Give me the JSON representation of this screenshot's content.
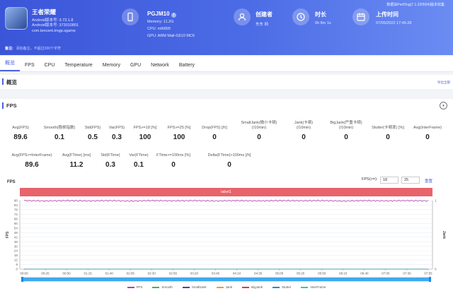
{
  "header": {
    "app_name": "王者荣耀",
    "app_version": "Android版本号: 3.73.1.8",
    "app_code": "Android版本号: 373010801",
    "package": "com.tencent.tmgp.sgame",
    "device_name": "PGJM10",
    "device_badge": "i",
    "device_memory": "Memory: 11.2G",
    "device_cpu": "CPU: mt6895",
    "device_gpu": "GPU: ARM Mali-G610 MC6",
    "creator_label": "创建者",
    "creator_value": "东东 网",
    "duration_label": "时长",
    "duration_value": "0h 8m 1s",
    "upload_label": "上传时间",
    "upload_value": "07/05/2022 17:45:28",
    "top_right": "数据由PerfDog(7.1.220504)版本收集",
    "note_key": "备注:",
    "note_placeholder": "添加备注，不超过200个字符"
  },
  "tabs": [
    "概览",
    "FPS",
    "CPU",
    "Temperature",
    "Memory",
    "GPU",
    "Network",
    "Battery"
  ],
  "active_tab": "概览",
  "overview": {
    "title": "概览",
    "export": "导出全部"
  },
  "fps": {
    "title": "FPS",
    "collapse": "▾",
    "row1": [
      {
        "label": "Avg(FPS)",
        "value": "89.6"
      },
      {
        "label": "Smooth(稳帧指数)",
        "value": "0.1"
      },
      {
        "label": "Std(FPS)",
        "value": "0.5"
      },
      {
        "label": "Var(FPS)",
        "value": "0.3"
      },
      {
        "label": "FPS>=18 [%]",
        "value": "100"
      },
      {
        "label": "FPS>=25 [%]",
        "value": "100"
      },
      {
        "label": "Drop(FPS) [/h]",
        "value": "0"
      },
      {
        "label": "SmallJank(微小卡顿)\n(/10min)",
        "value": "0"
      },
      {
        "label": "Jank(卡顿)\n(/10min)",
        "value": "0"
      },
      {
        "label": "BigJank(严重卡顿)\n(/10min)",
        "value": "0"
      },
      {
        "label": "Stutter(卡顿率) [%]",
        "value": "0"
      },
      {
        "label": "Avg(InterFrame)",
        "value": "0"
      }
    ],
    "row2": [
      {
        "label": "Avg(FPS>=InterFrame)",
        "value": "89.6"
      },
      {
        "label": "Avg(FTime) [ms]",
        "value": "11.2"
      },
      {
        "label": "Std(FTime)",
        "value": "0.3"
      },
      {
        "label": "Var(FTime)",
        "value": "0.1"
      },
      {
        "label": "FTime>=100ms [%]",
        "value": "0"
      },
      {
        "label": "Delta(FTime)>100ms [/h]",
        "value": "0"
      }
    ],
    "chart_title": "FPS",
    "filter_label": "FPS(>=):",
    "filter_a": "18",
    "filter_b": "25",
    "reset": "重置",
    "label_bar": "label1"
  },
  "chart_data": {
    "type": "line",
    "title": "",
    "xlabel": "",
    "ylabel": "FPS",
    "y2label": "Jank",
    "ylim": [
      0,
      90
    ],
    "yticks": [
      0,
      6,
      12,
      18,
      24,
      30,
      36,
      42,
      48,
      54,
      60,
      66,
      72,
      78,
      84,
      90
    ],
    "y2ticks": [
      0,
      1
    ],
    "categories": [
      "00:00",
      "00:25",
      "00:50",
      "01:15",
      "01:40",
      "02:05",
      "02:30",
      "02:55",
      "03:20",
      "03:45",
      "04:10",
      "04:35",
      "05:00",
      "05:25",
      "05:50",
      "06:15",
      "06:40",
      "07:05",
      "07:30",
      "07:55"
    ],
    "grid": true,
    "series": [
      {
        "name": "FPS",
        "color": "#b03fb0",
        "values": [
          90,
          89.5,
          90,
          89.6,
          90,
          89.4,
          90,
          89.7,
          90,
          89.5,
          90,
          89.6,
          90,
          89.8,
          90,
          89.4,
          90,
          89.6,
          90,
          89.6
        ]
      },
      {
        "name": "Smooth",
        "color": "#4caf50",
        "values": [
          0.1,
          0.1,
          0.1,
          0.1,
          0.1,
          0.1,
          0.1,
          0.1,
          0.1,
          0.1,
          0.1,
          0.1,
          0.1,
          0.1,
          0.1,
          0.1,
          0.1,
          0.1,
          0.1,
          0.1
        ]
      },
      {
        "name": "SmallJank",
        "color": "#3949ab",
        "values": [
          0,
          0,
          0,
          0,
          0,
          0,
          0,
          0,
          0,
          0,
          0,
          0,
          0,
          0,
          0,
          0,
          0,
          0,
          0,
          0
        ]
      },
      {
        "name": "Jank",
        "color": "#f39c12",
        "values": [
          0,
          0,
          0,
          0,
          0,
          0,
          0,
          0,
          0,
          0,
          0,
          0,
          0,
          0,
          0,
          0,
          0,
          0,
          0,
          0
        ]
      },
      {
        "name": "BigJank",
        "color": "#e53935",
        "values": [
          0,
          0,
          0,
          0,
          0,
          0,
          0,
          0,
          0,
          0,
          0,
          0,
          0,
          0,
          0,
          0,
          0,
          0,
          0,
          0
        ]
      },
      {
        "name": "Stutter",
        "color": "#1e88e5",
        "values": [
          0,
          0,
          0,
          0,
          0,
          0,
          0,
          0,
          0,
          0,
          0,
          0,
          0,
          0,
          0,
          0,
          0,
          0,
          0,
          0
        ]
      },
      {
        "name": "InterFrame",
        "color": "#26c6da",
        "values": [
          0,
          0,
          0,
          0,
          0,
          0,
          0,
          0,
          0,
          0,
          0,
          0,
          0,
          0,
          0,
          0,
          0,
          0,
          0,
          0
        ]
      }
    ],
    "legend_position": "bottom"
  }
}
